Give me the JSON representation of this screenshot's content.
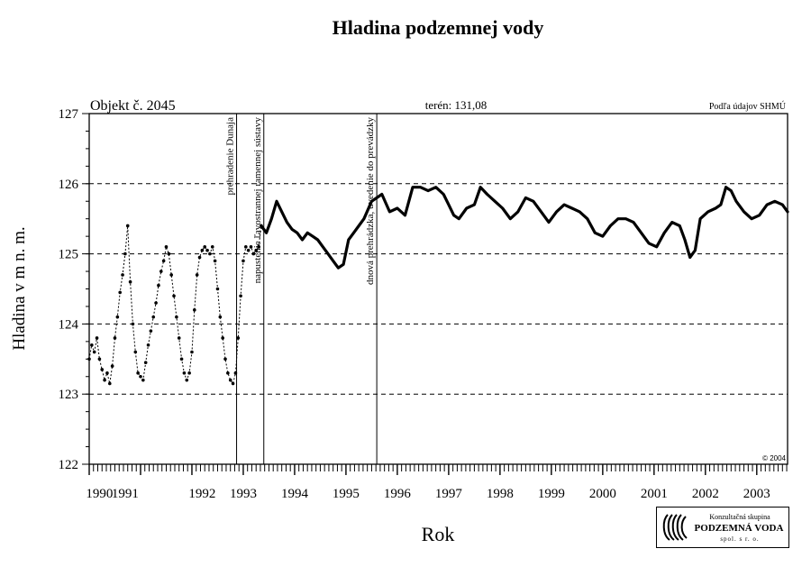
{
  "chart_data": {
    "type": "line",
    "title": "Hladina podzemnej vody",
    "object_label": "Objekt č. 2045",
    "terrain_label": "terén: 131,08",
    "source_label": "Podľa údajov SHMÚ",
    "copyright": "© 2004",
    "xlabel": "Rok",
    "ylabel": "Hladina v m n. m.",
    "ylim": [
      122,
      127
    ],
    "xlim": [
      1990.0,
      2003.6
    ],
    "y_ticks": [
      "122",
      "123",
      "124",
      "125",
      "126",
      "127"
    ],
    "dashed_gridlines": [
      123,
      124,
      125,
      126
    ],
    "x_tick_labels": [
      {
        "label": "1990",
        "x": 1990.2
      },
      {
        "label": "1991",
        "x": 1990.7
      },
      {
        "label": "1992",
        "x": 1992.2
      },
      {
        "label": "1993",
        "x": 1993.0
      },
      {
        "label": "1994",
        "x": 1994.0
      },
      {
        "label": "1995",
        "x": 1995.0
      },
      {
        "label": "1996",
        "x": 1996.0
      },
      {
        "label": "1997",
        "x": 1997.0
      },
      {
        "label": "1998",
        "x": 1998.0
      },
      {
        "label": "1999",
        "x": 1999.0
      },
      {
        "label": "2000",
        "x": 2000.0
      },
      {
        "label": "2001",
        "x": 2001.0
      },
      {
        "label": "2002",
        "x": 2002.0
      },
      {
        "label": "2003",
        "x": 2003.0
      }
    ],
    "events": [
      {
        "x": 1992.87,
        "label": "prehradenie Dunaja"
      },
      {
        "x": 1993.4,
        "label": "napustenie ľavostrannej ramennej sústavy"
      },
      {
        "x": 1995.6,
        "label": "dnová prehrádzka, uvedenie do prevádzky"
      }
    ],
    "series": [
      {
        "style": "dashed-markers",
        "points": [
          [
            1990.0,
            123.5
          ],
          [
            1990.05,
            123.7
          ],
          [
            1990.1,
            123.6
          ],
          [
            1990.15,
            123.8
          ],
          [
            1990.2,
            123.5
          ],
          [
            1990.25,
            123.35
          ],
          [
            1990.3,
            123.2
          ],
          [
            1990.35,
            123.3
          ],
          [
            1990.4,
            123.15
          ],
          [
            1990.45,
            123.4
          ],
          [
            1990.5,
            123.8
          ],
          [
            1990.55,
            124.1
          ],
          [
            1990.6,
            124.45
          ],
          [
            1990.65,
            124.7
          ],
          [
            1990.7,
            125.0
          ],
          [
            1990.75,
            125.4
          ],
          [
            1990.8,
            124.6
          ],
          [
            1990.85,
            124.0
          ],
          [
            1990.9,
            123.6
          ],
          [
            1990.95,
            123.3
          ],
          [
            1991.0,
            123.25
          ],
          [
            1991.05,
            123.2
          ],
          [
            1991.1,
            123.45
          ],
          [
            1991.15,
            123.7
          ],
          [
            1991.2,
            123.9
          ],
          [
            1991.25,
            124.1
          ],
          [
            1991.3,
            124.3
          ],
          [
            1991.35,
            124.55
          ],
          [
            1991.4,
            124.75
          ],
          [
            1991.45,
            124.9
          ],
          [
            1991.5,
            125.1
          ],
          [
            1991.55,
            125.0
          ],
          [
            1991.6,
            124.7
          ],
          [
            1991.65,
            124.4
          ],
          [
            1991.7,
            124.1
          ],
          [
            1991.75,
            123.8
          ],
          [
            1991.8,
            123.5
          ],
          [
            1991.85,
            123.3
          ],
          [
            1991.9,
            123.2
          ],
          [
            1991.95,
            123.3
          ],
          [
            1992.0,
            123.6
          ],
          [
            1992.05,
            124.2
          ],
          [
            1992.1,
            124.7
          ],
          [
            1992.15,
            124.95
          ],
          [
            1992.2,
            125.05
          ],
          [
            1992.25,
            125.1
          ],
          [
            1992.3,
            125.05
          ],
          [
            1992.35,
            125.0
          ],
          [
            1992.4,
            125.1
          ],
          [
            1992.45,
            124.9
          ],
          [
            1992.5,
            124.5
          ],
          [
            1992.55,
            124.1
          ],
          [
            1992.6,
            123.8
          ],
          [
            1992.65,
            123.5
          ],
          [
            1992.7,
            123.3
          ],
          [
            1992.75,
            123.2
          ],
          [
            1992.8,
            123.15
          ],
          [
            1992.85,
            123.3
          ],
          [
            1992.9,
            123.8
          ],
          [
            1992.95,
            124.4
          ],
          [
            1993.0,
            124.9
          ],
          [
            1993.05,
            125.1
          ],
          [
            1993.1,
            125.05
          ],
          [
            1993.15,
            125.1
          ],
          [
            1993.2,
            125.0
          ],
          [
            1993.25,
            125.05
          ],
          [
            1993.3,
            125.1
          ],
          [
            1993.35,
            125.4
          ]
        ]
      },
      {
        "style": "solid-bold",
        "points": [
          [
            1993.35,
            125.4
          ],
          [
            1993.45,
            125.3
          ],
          [
            1993.55,
            125.5
          ],
          [
            1993.65,
            125.75
          ],
          [
            1993.75,
            125.6
          ],
          [
            1993.85,
            125.45
          ],
          [
            1993.95,
            125.35
          ],
          [
            1994.05,
            125.3
          ],
          [
            1994.15,
            125.2
          ],
          [
            1994.25,
            125.3
          ],
          [
            1994.35,
            125.25
          ],
          [
            1994.45,
            125.2
          ],
          [
            1994.55,
            125.1
          ],
          [
            1994.65,
            125.0
          ],
          [
            1994.75,
            124.9
          ],
          [
            1994.85,
            124.8
          ],
          [
            1994.95,
            124.85
          ],
          [
            1995.05,
            125.2
          ],
          [
            1995.15,
            125.3
          ],
          [
            1995.25,
            125.4
          ],
          [
            1995.35,
            125.5
          ],
          [
            1995.5,
            125.75
          ],
          [
            1995.7,
            125.85
          ],
          [
            1995.85,
            125.6
          ],
          [
            1996.0,
            125.65
          ],
          [
            1996.15,
            125.55
          ],
          [
            1996.3,
            125.95
          ],
          [
            1996.45,
            125.95
          ],
          [
            1996.6,
            125.9
          ],
          [
            1996.75,
            125.95
          ],
          [
            1996.9,
            125.85
          ],
          [
            1997.0,
            125.7
          ],
          [
            1997.1,
            125.55
          ],
          [
            1997.2,
            125.5
          ],
          [
            1997.35,
            125.65
          ],
          [
            1997.5,
            125.7
          ],
          [
            1997.62,
            125.95
          ],
          [
            1997.75,
            125.85
          ],
          [
            1997.9,
            125.75
          ],
          [
            1998.05,
            125.65
          ],
          [
            1998.2,
            125.5
          ],
          [
            1998.35,
            125.6
          ],
          [
            1998.5,
            125.8
          ],
          [
            1998.65,
            125.75
          ],
          [
            1998.8,
            125.6
          ],
          [
            1998.95,
            125.45
          ],
          [
            1999.1,
            125.6
          ],
          [
            1999.25,
            125.7
          ],
          [
            1999.4,
            125.65
          ],
          [
            1999.55,
            125.6
          ],
          [
            1999.7,
            125.5
          ],
          [
            1999.85,
            125.3
          ],
          [
            2000.0,
            125.25
          ],
          [
            2000.15,
            125.4
          ],
          [
            2000.3,
            125.5
          ],
          [
            2000.45,
            125.5
          ],
          [
            2000.6,
            125.45
          ],
          [
            2000.75,
            125.3
          ],
          [
            2000.9,
            125.15
          ],
          [
            2001.05,
            125.1
          ],
          [
            2001.2,
            125.3
          ],
          [
            2001.35,
            125.45
          ],
          [
            2001.5,
            125.4
          ],
          [
            2001.6,
            125.2
          ],
          [
            2001.7,
            124.95
          ],
          [
            2001.8,
            125.05
          ],
          [
            2001.9,
            125.5
          ],
          [
            2002.05,
            125.6
          ],
          [
            2002.2,
            125.65
          ],
          [
            2002.3,
            125.7
          ],
          [
            2002.4,
            125.95
          ],
          [
            2002.5,
            125.9
          ],
          [
            2002.6,
            125.75
          ],
          [
            2002.75,
            125.6
          ],
          [
            2002.9,
            125.5
          ],
          [
            2003.05,
            125.55
          ],
          [
            2003.2,
            125.7
          ],
          [
            2003.35,
            125.75
          ],
          [
            2003.5,
            125.7
          ],
          [
            2003.6,
            125.6
          ]
        ]
      }
    ]
  },
  "logo": {
    "line1": "Konzultačná skupina",
    "line2": "PODZEMNÁ VODA",
    "line3": "spol. s r. o."
  }
}
